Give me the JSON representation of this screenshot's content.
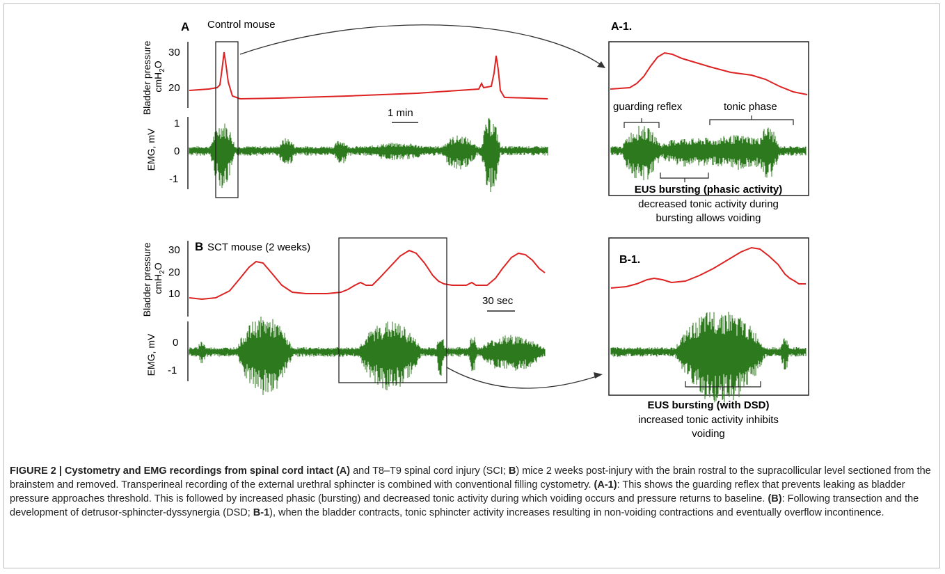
{
  "panel_a": {
    "letter": "A",
    "title": "Control mouse",
    "pressure_axis_label_line1": "Bladder pressure",
    "pressure_axis_label_line2_prefix": "cmH",
    "pressure_axis_label_line2_sub": "2",
    "pressure_axis_label_line2_suffix": "O",
    "pressure_ticks": [
      "30",
      "20"
    ],
    "emg_axis_label": "EMG, mV",
    "emg_ticks": [
      "1",
      "0",
      "-1"
    ],
    "scale_bar": "1 min"
  },
  "panel_a1": {
    "label": "A-1.",
    "guarding_reflex": "guarding reflex",
    "tonic_phase": "tonic phase",
    "bursting_title": "EUS bursting (phasic activity)",
    "bursting_line1": "decreased tonic activity during",
    "bursting_line2": "bursting allows voiding"
  },
  "panel_b": {
    "letter": "B",
    "title": "SCT mouse (2 weeks)",
    "pressure_axis_label_line1": "Bladder pressure",
    "pressure_axis_label_line2_prefix": "cmH",
    "pressure_axis_label_line2_sub": "2",
    "pressure_axis_label_line2_suffix": "O",
    "pressure_ticks": [
      "30",
      "20",
      "10"
    ],
    "emg_axis_label": "EMG, mV",
    "emg_ticks": [
      "0",
      "-1"
    ],
    "scale_bar": "30 sec"
  },
  "panel_b1": {
    "label": "B-1.",
    "bursting_title": "EUS bursting (with DSD)",
    "bursting_line1": "increased tonic activity inhibits",
    "bursting_line2": "voiding"
  },
  "caption": {
    "p1": "FIGURE 2 | Cystometry and EMG recordings from spinal cord intact (A)",
    "p2": " and T8–T9 spinal cord injury (SCI; ",
    "p3": "B",
    "p4": ") mice 2 weeks post-injury with the brain rostral to the supracollicular level sectioned from the brainstem and removed. Transperineal recording of the external urethral sphincter is combined with conventional filling cystometry. ",
    "p5": "(A-1)",
    "p6": ": This shows the guarding reflex that prevents leaking as bladder pressure approaches threshold. This is followed by increased phasic (bursting) and decreased tonic activity during which voiding occurs and pressure returns to baseline. ",
    "p7": "(B)",
    "p8": ": Following transection and the development of detrusor-sphincter-dyssynergia (DSD; ",
    "p9": "B-1",
    "p10": "), when the bladder contracts, tonic sphincter activity increases resulting in non-voiding contractions and eventually overflow incontinence."
  },
  "colors": {
    "pressure_trace": "#dd2222",
    "emg_trace": "#2d7a1e",
    "frame": "#222222"
  }
}
